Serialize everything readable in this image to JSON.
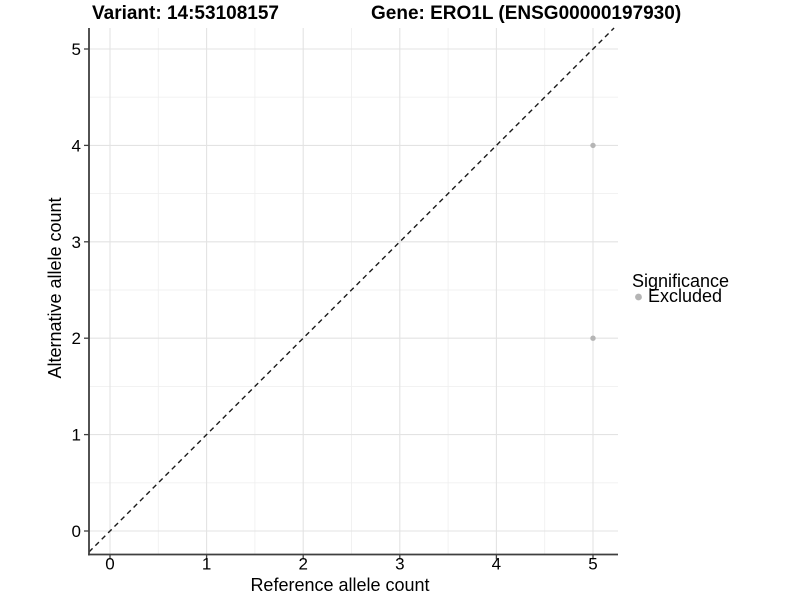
{
  "chart_data": {
    "type": "scatter",
    "title_left": "Variant: 14:53108157",
    "title_right": "Gene: ERO1L (ENSG00000197930)",
    "xlabel": "Reference allele count",
    "ylabel": "Alternative allele count",
    "x_ticks": [
      0,
      1,
      2,
      3,
      4,
      5
    ],
    "y_ticks": [
      0,
      1,
      2,
      3,
      4,
      5
    ],
    "xlim": [
      -0.22,
      5.26
    ],
    "ylim": [
      -0.24,
      5.22
    ],
    "grid": {
      "major": true,
      "minor": true
    },
    "series": [
      {
        "name": "Excluded",
        "color": "#b5b5b5",
        "points": [
          [
            5,
            4
          ],
          [
            5,
            2
          ]
        ]
      }
    ],
    "identity_line": {
      "slope": 1,
      "intercept": 0,
      "style": "dashed",
      "color": "#1a1a1a"
    },
    "legend": {
      "position": "right",
      "title": "Significance",
      "entries": [
        {
          "label": "Excluded",
          "color": "#b5b5b5"
        }
      ]
    },
    "colors": {
      "background": "#ffffff",
      "grid_major": "#e3e3e3",
      "grid_minor": "#f0f0f0",
      "axis_line": "#3f3f3f",
      "text": "#000000"
    }
  }
}
